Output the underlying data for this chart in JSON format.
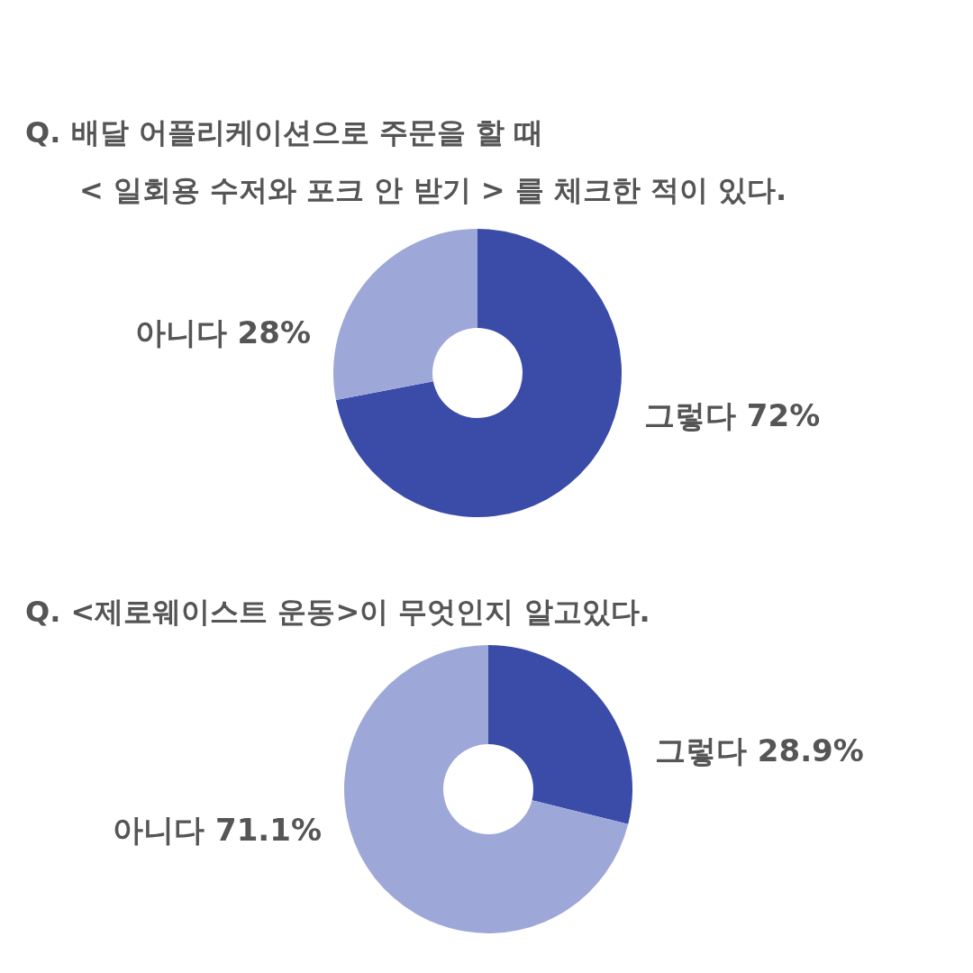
{
  "chart_data": [
    {
      "type": "donut",
      "title": "Q.  배달 어플리케이션으로 주문을 할 때\n< 일회용 수저와 포크 안 받기 > 를 체크한 적이 있다.",
      "categories": [
        "그렇다",
        "아니다"
      ],
      "values": [
        72,
        28
      ],
      "value_labels": [
        "72%",
        "28%"
      ],
      "colors": [
        "#3b4ca8",
        "#9ea8d8"
      ],
      "legend": false
    },
    {
      "type": "donut",
      "title": "Q. <제로웨이스트 운동>이 무엇인지 알고있다.",
      "categories": [
        "그렇다",
        "아니다"
      ],
      "values": [
        28.9,
        71.1
      ],
      "value_labels": [
        "28.9%",
        "71.1%"
      ],
      "colors": [
        "#3b4ca8",
        "#9ea8d8"
      ],
      "legend": false
    }
  ]
}
